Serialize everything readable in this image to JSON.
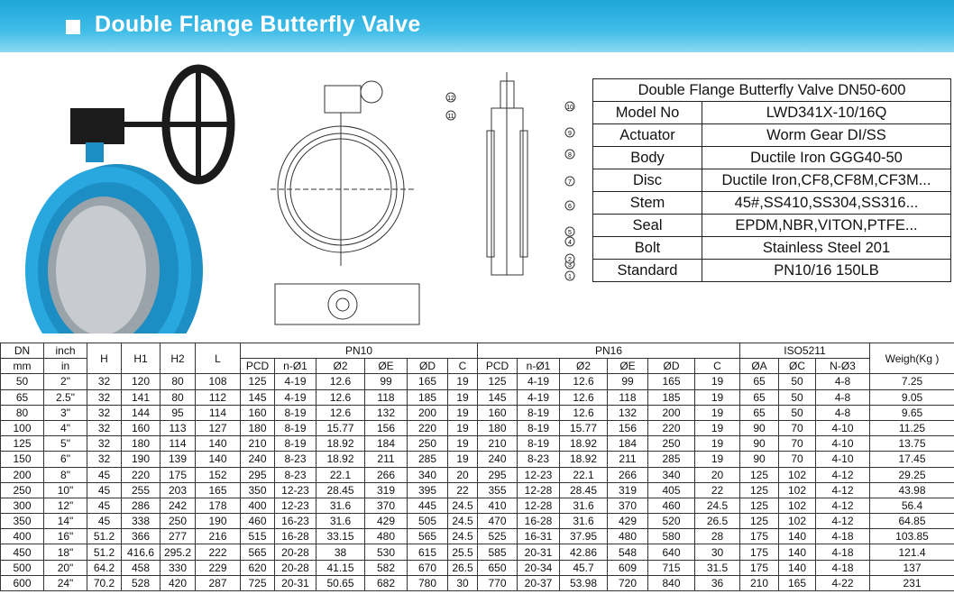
{
  "header": {
    "title": "Double Flange Butterfly Valve"
  },
  "drawing": {
    "callouts": [
      "12",
      "11",
      "10",
      "9",
      "8",
      "7",
      "6",
      "5",
      "4",
      "3",
      "2",
      "1"
    ]
  },
  "spec_table": {
    "title": "Double Flange Butterfly Valve DN50-600",
    "rows": [
      [
        "Model No",
        "LWD341X-10/16Q"
      ],
      [
        "Actuator",
        "Worm Gear DI/SS"
      ],
      [
        "Body",
        "Ductile Iron  GGG40-50"
      ],
      [
        "Disc",
        "Ductile Iron,CF8,CF8M,CF3M..."
      ],
      [
        "Stem",
        "45#,SS410,SS304,SS316..."
      ],
      [
        "Seal",
        "EPDM,NBR,VITON,PTFE..."
      ],
      [
        "Bolt",
        "Stainless Steel 201"
      ],
      [
        "Standard",
        "PN10/16 150LB"
      ]
    ]
  },
  "dimension_table": {
    "header_top": [
      "DN",
      "inch",
      "H",
      "H1",
      "H2",
      "L",
      "PN10",
      "PN16",
      "ISO5211",
      "Weigh(Kg )"
    ],
    "header_sub": [
      "mm",
      "in",
      "PCD",
      "n-Ø1",
      "Ø2",
      "ØE",
      "ØD",
      "C",
      "PCD",
      "n-Ø1",
      "Ø2",
      "ØE",
      "ØD",
      "C",
      "ØA",
      "ØC",
      "N-Ø3"
    ],
    "rows": [
      [
        "50",
        "2\"",
        "32",
        "120",
        "80",
        "108",
        "125",
        "4-19",
        "12.6",
        "99",
        "165",
        "19",
        "125",
        "4-19",
        "12.6",
        "99",
        "165",
        "19",
        "65",
        "50",
        "4-8",
        "7.25"
      ],
      [
        "65",
        "2.5\"",
        "32",
        "141",
        "80",
        "112",
        "145",
        "4-19",
        "12.6",
        "118",
        "185",
        "19",
        "145",
        "4-19",
        "12.6",
        "118",
        "185",
        "19",
        "65",
        "50",
        "4-8",
        "9.05"
      ],
      [
        "80",
        "3\"",
        "32",
        "144",
        "95",
        "114",
        "160",
        "8-19",
        "12.6",
        "132",
        "200",
        "19",
        "160",
        "8-19",
        "12.6",
        "132",
        "200",
        "19",
        "65",
        "50",
        "4-8",
        "9.65"
      ],
      [
        "100",
        "4\"",
        "32",
        "160",
        "113",
        "127",
        "180",
        "8-19",
        "15.77",
        "156",
        "220",
        "19",
        "180",
        "8-19",
        "15.77",
        "156",
        "220",
        "19",
        "90",
        "70",
        "4-10",
        "11.25"
      ],
      [
        "125",
        "5\"",
        "32",
        "180",
        "114",
        "140",
        "210",
        "8-19",
        "18.92",
        "184",
        "250",
        "19",
        "210",
        "8-19",
        "18.92",
        "184",
        "250",
        "19",
        "90",
        "70",
        "4-10",
        "13.75"
      ],
      [
        "150",
        "6\"",
        "32",
        "190",
        "139",
        "140",
        "240",
        "8-23",
        "18.92",
        "211",
        "285",
        "19",
        "240",
        "8-23",
        "18.92",
        "211",
        "285",
        "19",
        "90",
        "70",
        "4-10",
        "17.45"
      ],
      [
        "200",
        "8\"",
        "45",
        "220",
        "175",
        "152",
        "295",
        "8-23",
        "22.1",
        "266",
        "340",
        "20",
        "295",
        "12-23",
        "22.1",
        "266",
        "340",
        "20",
        "125",
        "102",
        "4-12",
        "29.25"
      ],
      [
        "250",
        "10\"",
        "45",
        "255",
        "203",
        "165",
        "350",
        "12-23",
        "28.45",
        "319",
        "395",
        "22",
        "355",
        "12-28",
        "28.45",
        "319",
        "405",
        "22",
        "125",
        "102",
        "4-12",
        "43.98"
      ],
      [
        "300",
        "12\"",
        "45",
        "286",
        "242",
        "178",
        "400",
        "12-23",
        "31.6",
        "370",
        "445",
        "24.5",
        "410",
        "12-28",
        "31.6",
        "370",
        "460",
        "24.5",
        "125",
        "102",
        "4-12",
        "56.4"
      ],
      [
        "350",
        "14\"",
        "45",
        "338",
        "250",
        "190",
        "460",
        "16-23",
        "31.6",
        "429",
        "505",
        "24.5",
        "470",
        "16-28",
        "31.6",
        "429",
        "520",
        "26.5",
        "125",
        "102",
        "4-12",
        "64.85"
      ],
      [
        "400",
        "16\"",
        "51.2",
        "366",
        "277",
        "216",
        "515",
        "16-28",
        "33.15",
        "480",
        "565",
        "24.5",
        "525",
        "16-31",
        "37.95",
        "480",
        "580",
        "28",
        "175",
        "140",
        "4-18",
        "103.85"
      ],
      [
        "450",
        "18\"",
        "51.2",
        "416.6",
        "295.2",
        "222",
        "565",
        "20-28",
        "38",
        "530",
        "615",
        "25.5",
        "585",
        "20-31",
        "42.86",
        "548",
        "640",
        "30",
        "175",
        "140",
        "4-18",
        "121.4"
      ],
      [
        "500",
        "20\"",
        "64.2",
        "458",
        "330",
        "229",
        "620",
        "20-28",
        "41.15",
        "582",
        "670",
        "26.5",
        "650",
        "20-34",
        "45.7",
        "609",
        "715",
        "31.5",
        "175",
        "140",
        "4-18",
        "137"
      ],
      [
        "600",
        "24\"",
        "70.2",
        "528",
        "420",
        "287",
        "725",
        "20-31",
        "50.65",
        "682",
        "780",
        "30",
        "770",
        "20-37",
        "53.98",
        "720",
        "840",
        "36",
        "210",
        "165",
        "4-22",
        "231"
      ]
    ]
  }
}
